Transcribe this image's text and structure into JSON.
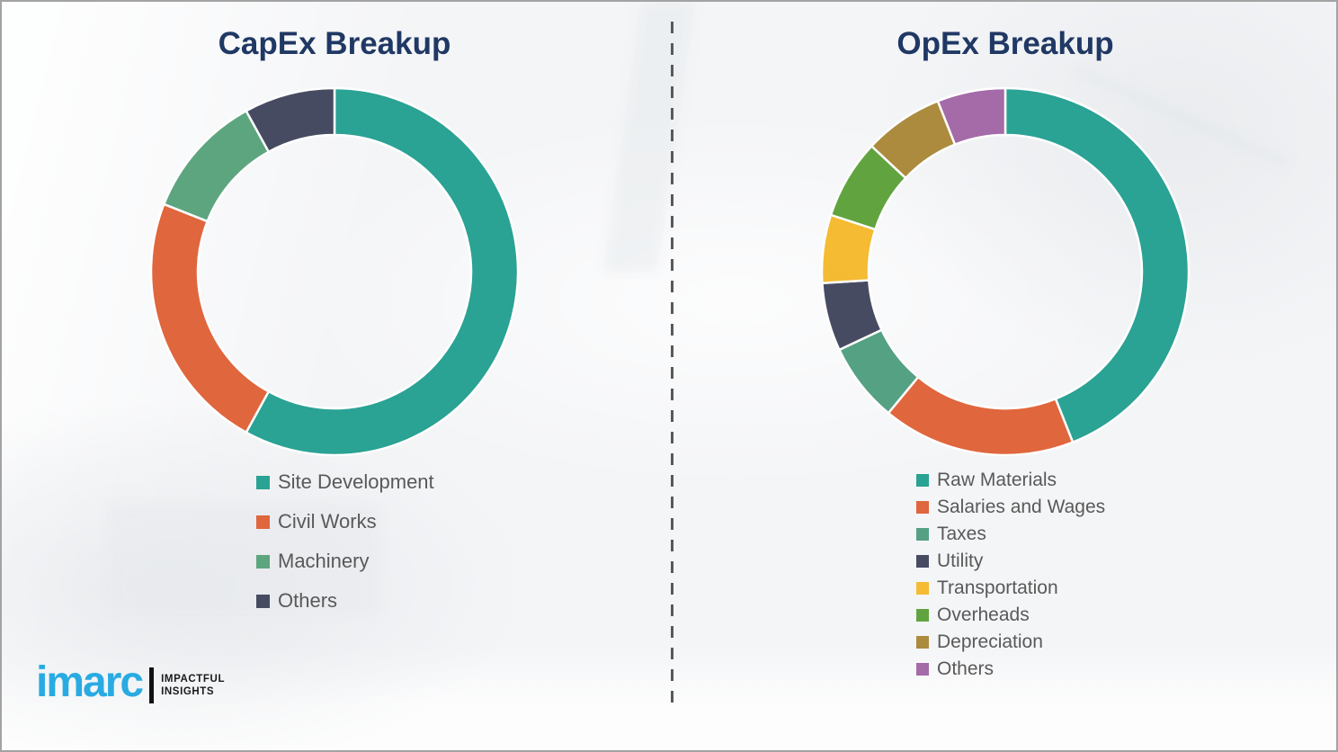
{
  "theme": {
    "background_color": "#f4f5f7",
    "border_color": "#a3a3a3",
    "title_color": "#203864",
    "legend_text_color": "#595959",
    "divider_color": "#58595b",
    "segment_gap_color": "#ffffff"
  },
  "chart_data": [
    {
      "type": "pie",
      "subtype": "donut",
      "title": "CapEx Breakup",
      "legend_position": "bottom",
      "categories": [
        "Site Development",
        "Civil Works",
        "Machinery",
        "Others"
      ],
      "values": [
        58,
        23,
        11,
        8
      ],
      "colors": [
        "#2aa294",
        "#e0663d",
        "#5da57f",
        "#474b62"
      ],
      "start_angle_deg": 0,
      "direction": "clockwise"
    },
    {
      "type": "pie",
      "subtype": "donut",
      "title": "OpEx Breakup",
      "legend_position": "bottom",
      "categories": [
        "Raw Materials",
        "Salaries and Wages",
        "Taxes",
        "Utility",
        "Transportation",
        "Overheads",
        "Depreciation",
        "Others"
      ],
      "values": [
        44,
        17,
        7,
        6,
        6,
        7,
        7,
        6
      ],
      "colors": [
        "#2aa294",
        "#e0663d",
        "#55a183",
        "#474b62",
        "#f4bb33",
        "#61a43f",
        "#ac8b3e",
        "#a56aa8"
      ],
      "start_angle_deg": 0,
      "direction": "clockwise"
    }
  ],
  "logo": {
    "brand": "imarc",
    "brand_color": "#29abe2",
    "tagline_line1": "IMPACTFUL",
    "tagline_line2": "INSIGHTS"
  }
}
